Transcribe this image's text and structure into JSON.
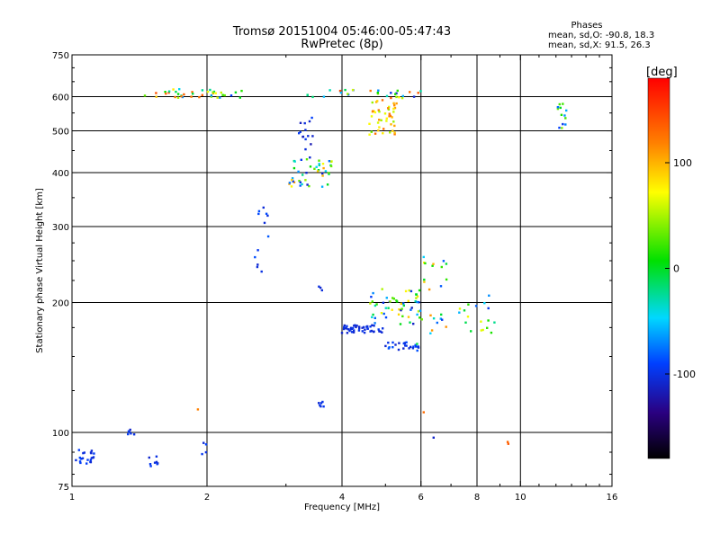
{
  "chart_data": {
    "type": "scatter",
    "title": "Tromsø 20151004 05:46:00-05:47:43",
    "subtitle": "RwPretec (8p)",
    "xlabel": "Frequency [MHz]",
    "ylabel": "Stationary phase Virtual Height [km]",
    "x_scale": "log",
    "y_scale": "log",
    "xlim": [
      1,
      16
    ],
    "ylim": [
      75,
      750
    ],
    "x_ticks": [
      1,
      2,
      4,
      6,
      8,
      10,
      16
    ],
    "x_tick_labels": [
      "1",
      "2",
      "4",
      "6",
      "8",
      "10",
      "16"
    ],
    "y_ticks": [
      75,
      100,
      200,
      300,
      400,
      500,
      600,
      750
    ],
    "y_tick_labels": [
      "75",
      "100",
      "200",
      "300",
      "400",
      "500",
      "600",
      "750"
    ],
    "x_grid": [
      2,
      4,
      6,
      8,
      10
    ],
    "y_grid": [
      100,
      200,
      300,
      400,
      500,
      600
    ],
    "stats": {
      "heading": "Phases",
      "line_o": "mean, sd,O: -90.8, 18.3",
      "line_x": "mean, sd,X:  91.5, 26.3"
    },
    "colorbar": {
      "label": "[deg]",
      "range": [
        -180,
        180
      ],
      "ticks": [
        100,
        0,
        -100
      ],
      "tick_labels": [
        "100",
        "0",
        "-100"
      ]
    },
    "clusters": [
      {
        "x": [
          1.02,
          1.12
        ],
        "y": [
          84,
          92
        ],
        "n": 22,
        "phase": [
          -110,
          -85
        ]
      },
      {
        "x": [
          1.3,
          1.38
        ],
        "y": [
          98,
          103
        ],
        "n": 6,
        "phase": [
          -110,
          -90
        ]
      },
      {
        "x": [
          1.48,
          1.56
        ],
        "y": [
          80,
          88
        ],
        "n": 8,
        "phase": [
          -110,
          -90
        ]
      },
      {
        "x": [
          1.95,
          2.0
        ],
        "y": [
          86,
          96
        ],
        "n": 4,
        "phase": [
          -110,
          -90
        ]
      },
      {
        "x": [
          1.45,
          2.4
        ],
        "y": [
          596,
          625
        ],
        "n": 40,
        "phase": [
          -100,
          150
        ]
      },
      {
        "x": [
          2.55,
          2.75
        ],
        "y": [
          230,
          345
        ],
        "n": 12,
        "phase": [
          -110,
          -80
        ]
      },
      {
        "x": [
          3.05,
          3.8
        ],
        "y": [
          370,
          440
        ],
        "n": 45,
        "phase": [
          -120,
          110
        ]
      },
      {
        "x": [
          3.2,
          3.45
        ],
        "y": [
          440,
          540
        ],
        "n": 14,
        "phase": [
          -120,
          -90
        ]
      },
      {
        "x": [
          3.55,
          3.65
        ],
        "y": [
          114,
          118
        ],
        "n": 6,
        "phase": [
          -110,
          -95
        ]
      },
      {
        "x": [
          3.55,
          3.65
        ],
        "y": [
          212,
          218
        ],
        "n": 3,
        "phase": [
          -110,
          -95
        ]
      },
      {
        "x": [
          3.3,
          6.0
        ],
        "y": [
          595,
          625
        ],
        "n": 30,
        "phase": [
          -110,
          170
        ]
      },
      {
        "x": [
          4.6,
          5.3
        ],
        "y": [
          490,
          590
        ],
        "n": 45,
        "phase": [
          20,
          130
        ]
      },
      {
        "x": [
          4.0,
          5.0
        ],
        "y": [
          170,
          178
        ],
        "n": 45,
        "phase": [
          -110,
          -95
        ]
      },
      {
        "x": [
          4.6,
          6.0
        ],
        "y": [
          178,
          215
        ],
        "n": 50,
        "phase": [
          -120,
          100
        ]
      },
      {
        "x": [
          5.0,
          6.0
        ],
        "y": [
          155,
          162
        ],
        "n": 25,
        "phase": [
          -110,
          -80
        ]
      },
      {
        "x": [
          5.8,
          6.9
        ],
        "y": [
          150,
          260
        ],
        "n": 30,
        "phase": [
          -100,
          120
        ]
      },
      {
        "x": [
          7.3,
          8.8
        ],
        "y": [
          170,
          210
        ],
        "n": 18,
        "phase": [
          -100,
          80
        ]
      },
      {
        "x": [
          12.1,
          12.7
        ],
        "y": [
          505,
          585
        ],
        "n": 14,
        "phase": [
          -100,
          60
        ]
      },
      {
        "x": [
          6.4,
          6.5
        ],
        "y": [
          96,
          98
        ],
        "n": 1,
        "phase": [
          -110,
          -110
        ]
      },
      {
        "x": [
          9.3,
          9.4
        ],
        "y": [
          94,
          97
        ],
        "n": 2,
        "phase": [
          130,
          150
        ]
      },
      {
        "x": [
          1.9,
          1.95
        ],
        "y": [
          113,
          115
        ],
        "n": 1,
        "phase": [
          120,
          120
        ]
      },
      {
        "x": [
          6.0,
          6.1
        ],
        "y": [
          110,
          112
        ],
        "n": 1,
        "phase": [
          130,
          130
        ]
      }
    ]
  }
}
